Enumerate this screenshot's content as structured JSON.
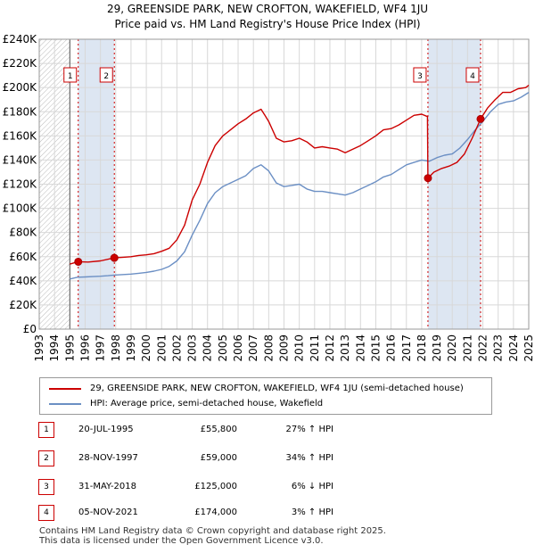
{
  "title_line1": "29, GREENSIDE PARK, NEW CROFTON, WAKEFIELD, WF4 1JU",
  "title_line2": "Price paid vs. HM Land Registry's House Price Index (HPI)",
  "colors": {
    "property": "#cc0000",
    "hpi": "#6b8fc4",
    "shade": "#dde6f2",
    "grid": "#d8d8d8"
  },
  "chart_data": {
    "type": "line",
    "xlim": [
      1993,
      2025
    ],
    "ylim": [
      0,
      240000
    ],
    "y_ticks": [
      {
        "value": 0,
        "label": "£0"
      },
      {
        "value": 20000,
        "label": "£20K"
      },
      {
        "value": 40000,
        "label": "£40K"
      },
      {
        "value": 60000,
        "label": "£60K"
      },
      {
        "value": 80000,
        "label": "£80K"
      },
      {
        "value": 100000,
        "label": "£100K"
      },
      {
        "value": 120000,
        "label": "£120K"
      },
      {
        "value": 140000,
        "label": "£140K"
      },
      {
        "value": 160000,
        "label": "£160K"
      },
      {
        "value": 180000,
        "label": "£180K"
      },
      {
        "value": 200000,
        "label": "£200K"
      },
      {
        "value": 220000,
        "label": "£220K"
      },
      {
        "value": 240000,
        "label": "£240K"
      }
    ],
    "x_ticks": [
      "1993",
      "1994",
      "1995",
      "1996",
      "1997",
      "1998",
      "1999",
      "2000",
      "2001",
      "2002",
      "2003",
      "2004",
      "2005",
      "2006",
      "2007",
      "2008",
      "2009",
      "2010",
      "2011",
      "2012",
      "2013",
      "2014",
      "2015",
      "2016",
      "2017",
      "2018",
      "2019",
      "2020",
      "2021",
      "2022",
      "2023",
      "2024",
      "2025"
    ],
    "hatched_until": 1995.0,
    "shaded_ranges": [
      [
        1995.55,
        1997.91
      ],
      [
        2018.41,
        2021.85
      ]
    ],
    "series": [
      {
        "name": "29, GREENSIDE PARK, NEW CROFTON, WAKEFIELD, WF4 1JU (semi-detached house)",
        "color": "#cc0000",
        "x": [
          1995.0,
          1995.55,
          1996.2,
          1997.0,
          1997.91,
          1998.5,
          1999.0,
          1999.5,
          2000.0,
          2000.5,
          2001.0,
          2001.5,
          2002.0,
          2002.5,
          2003.0,
          2003.5,
          2004.0,
          2004.5,
          2005.0,
          2005.5,
          2006.0,
          2006.5,
          2007.0,
          2007.5,
          2007.75,
          2008.0,
          2008.5,
          2009.0,
          2009.5,
          2010.0,
          2010.5,
          2011.0,
          2011.5,
          2012.0,
          2012.5,
          2013.0,
          2013.5,
          2014.0,
          2014.5,
          2015.0,
          2015.5,
          2016.0,
          2016.5,
          2017.0,
          2017.5,
          2018.0,
          2018.38,
          2018.41,
          2018.8,
          2019.3,
          2019.8,
          2020.3,
          2020.8,
          2021.3,
          2021.85,
          2022.3,
          2022.8,
          2023.3,
          2023.8,
          2024.3,
          2024.8,
          2025.0
        ],
        "values": [
          53800,
          55800,
          55500,
          56500,
          59000,
          59500,
          60000,
          61000,
          61500,
          62500,
          64500,
          67000,
          74000,
          86000,
          107000,
          120000,
          138000,
          152000,
          160000,
          165000,
          170000,
          174000,
          179000,
          182000,
          177000,
          172000,
          158000,
          155000,
          156000,
          158000,
          155000,
          150000,
          151000,
          150000,
          149000,
          146000,
          149000,
          152000,
          156000,
          160000,
          165000,
          166000,
          169000,
          173000,
          177000,
          178000,
          176000,
          125000,
          130000,
          133000,
          135000,
          138000,
          145000,
          158000,
          174000,
          183000,
          190000,
          196000,
          196000,
          199000,
          200000,
          202000
        ]
      },
      {
        "name": "HPI: Average price, semi-detached house, Wakefield",
        "color": "#6b8fc4",
        "x": [
          1995.0,
          1995.5,
          1996.0,
          1996.5,
          1997.0,
          1997.5,
          1998.0,
          1998.5,
          1999.0,
          1999.5,
          2000.0,
          2000.5,
          2001.0,
          2001.5,
          2002.0,
          2002.5,
          2003.0,
          2003.5,
          2004.0,
          2004.5,
          2005.0,
          2005.5,
          2006.0,
          2006.5,
          2007.0,
          2007.5,
          2008.0,
          2008.5,
          2009.0,
          2009.5,
          2010.0,
          2010.5,
          2011.0,
          2011.5,
          2012.0,
          2012.5,
          2013.0,
          2013.5,
          2014.0,
          2014.5,
          2015.0,
          2015.5,
          2016.0,
          2016.5,
          2017.0,
          2017.5,
          2018.0,
          2018.5,
          2019.0,
          2019.5,
          2020.0,
          2020.5,
          2021.0,
          2021.5,
          2022.0,
          2022.5,
          2023.0,
          2023.5,
          2024.0,
          2024.5,
          2025.0
        ],
        "values": [
          41500,
          43000,
          43200,
          43500,
          43800,
          44200,
          44800,
          45200,
          45600,
          46200,
          47000,
          48000,
          49500,
          52000,
          56500,
          64000,
          78000,
          90000,
          104000,
          113000,
          118000,
          121000,
          124000,
          127000,
          133000,
          136000,
          131000,
          121000,
          118000,
          119000,
          120000,
          116000,
          114000,
          114000,
          113000,
          112000,
          111000,
          113000,
          116000,
          119000,
          122000,
          126000,
          128000,
          132000,
          136000,
          138000,
          140000,
          139000,
          142000,
          144000,
          145000,
          150000,
          157000,
          165000,
          172000,
          180000,
          186000,
          188000,
          189000,
          192000,
          196000
        ]
      }
    ],
    "transactions": [
      {
        "marker": "1",
        "x": 1995.55,
        "price": 55800
      },
      {
        "marker": "2",
        "x": 1997.91,
        "price": 59000
      },
      {
        "marker": "3",
        "x": 2018.41,
        "price": 125000
      },
      {
        "marker": "4",
        "x": 2021.85,
        "price": 174000
      }
    ]
  },
  "legend": {
    "property_label": "29, GREENSIDE PARK, NEW CROFTON, WAKEFIELD, WF4 1JU (semi-detached house)",
    "hpi_label": "HPI: Average price, semi-detached house, Wakefield"
  },
  "table": [
    {
      "num": "1",
      "date": "20-JUL-1995",
      "price": "£55,800",
      "hpi": "27% ↑ HPI"
    },
    {
      "num": "2",
      "date": "28-NOV-1997",
      "price": "£59,000",
      "hpi": "34% ↑ HPI"
    },
    {
      "num": "3",
      "date": "31-MAY-2018",
      "price": "£125,000",
      "hpi": "6% ↓ HPI"
    },
    {
      "num": "4",
      "date": "05-NOV-2021",
      "price": "£174,000",
      "hpi": "3% ↑ HPI"
    }
  ],
  "footer_line1": "Contains HM Land Registry data © Crown copyright and database right 2025.",
  "footer_line2": "This data is licensed under the Open Government Licence v3.0."
}
